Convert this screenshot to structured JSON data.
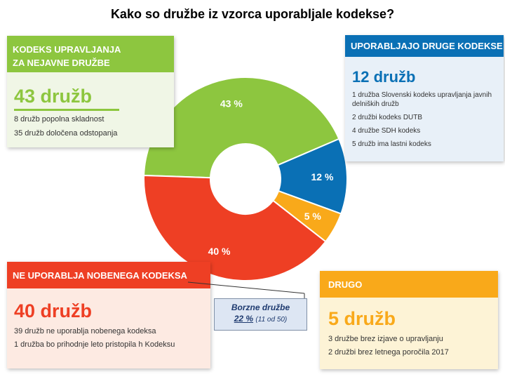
{
  "page": {
    "title": "Kako so družbe iz vzorca uporabljale kodekse?"
  },
  "chart_data": {
    "type": "pie",
    "donut": true,
    "categories": [
      "KODEKS UPRAVLJANJA ZA NEJAVNE DRUŽBE",
      "UPORABLJAJO DRUGE KODEKSE",
      "DRUGO",
      "NE UPORABLJA NOBENEGA KODEKSA"
    ],
    "values": [
      43,
      12,
      5,
      40
    ],
    "labels": [
      "43 %",
      "12 %",
      "5 %",
      "40 %"
    ],
    "colors": [
      "#8dc63f",
      "#0a70b5",
      "#f9a91a",
      "#ee3f24"
    ]
  },
  "boxes": {
    "green": {
      "heading_1": "KODEKS UPRAVLJANJA",
      "heading_2": "ZA NEJAVNE DRUŽBE",
      "count": "43 družb",
      "lines": [
        "8 družb popolna skladnost",
        "35 družb določena odstopanja"
      ]
    },
    "blue": {
      "heading": "UPORABLJAJO DRUGE KODEKSE",
      "count": "12 družb",
      "lines": [
        "1 družba Slovenski kodeks upravljanja javnih delniških družb",
        "2 družbi kodeks DUTB",
        "4 družbe SDH kodeks",
        "5 družb ima lastni kodeks"
      ]
    },
    "red": {
      "heading": "NE UPORABLJA NOBENEGA KODEKSA",
      "count": "40 družb",
      "lines": [
        "39 družb ne uporablja nobenega kodeksa",
        "1 družba bo prihodnje leto pristopila h Kodeksu"
      ]
    },
    "orange": {
      "heading": "DRUGO",
      "count": "5 družb",
      "lines": [
        "3 družbe brez izjave o upravljanju",
        "2 družbi brez letnega poročila 2017"
      ]
    }
  },
  "callout": {
    "title": "Borzne družbe",
    "percent": "22 %",
    "detail": "(11 od 50)"
  }
}
